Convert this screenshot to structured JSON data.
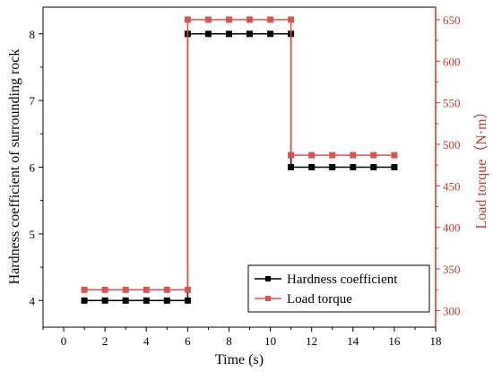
{
  "chart_data": {
    "type": "line",
    "xlabel": "Time (s)",
    "ylabel_left": "Hardness coefficient of surrounding rock",
    "ylabel_right": "Load torque（N·m）",
    "xlim": [
      -1,
      18
    ],
    "ylim_left": [
      3.6,
      8.4
    ],
    "ylim_right": [
      280,
      665
    ],
    "x_ticks": [
      0,
      2,
      4,
      6,
      8,
      10,
      12,
      14,
      16,
      18
    ],
    "y_left_ticks": [
      4,
      5,
      6,
      7,
      8
    ],
    "y_right_ticks": [
      300,
      350,
      400,
      450,
      500,
      550,
      600,
      650
    ],
    "grid": false,
    "legend_position": "bottom-right",
    "colors": {
      "left_axis": "#000000",
      "right_axis": "#c0392b",
      "series_black": "#000000",
      "series_red": "#d9534f"
    },
    "series": [
      {
        "name": "Hardness coefficient",
        "axis": "left",
        "color": "#000000",
        "x": [
          1,
          2,
          3,
          4,
          5,
          6,
          6,
          7,
          8,
          9,
          10,
          11,
          11,
          12,
          13,
          14,
          15,
          16
        ],
        "y": [
          4,
          4,
          4,
          4,
          4,
          4,
          8,
          8,
          8,
          8,
          8,
          8,
          6,
          6,
          6,
          6,
          6,
          6
        ]
      },
      {
        "name": "Load torque",
        "axis": "right",
        "color": "#d9534f",
        "x": [
          1,
          2,
          3,
          4,
          5,
          6,
          6,
          7,
          8,
          9,
          10,
          11,
          11,
          12,
          13,
          14,
          15,
          16
        ],
        "y": [
          325,
          325,
          325,
          325,
          325,
          325,
          650,
          650,
          650,
          650,
          650,
          650,
          487,
          487,
          487,
          487,
          487,
          487
        ]
      }
    ]
  }
}
